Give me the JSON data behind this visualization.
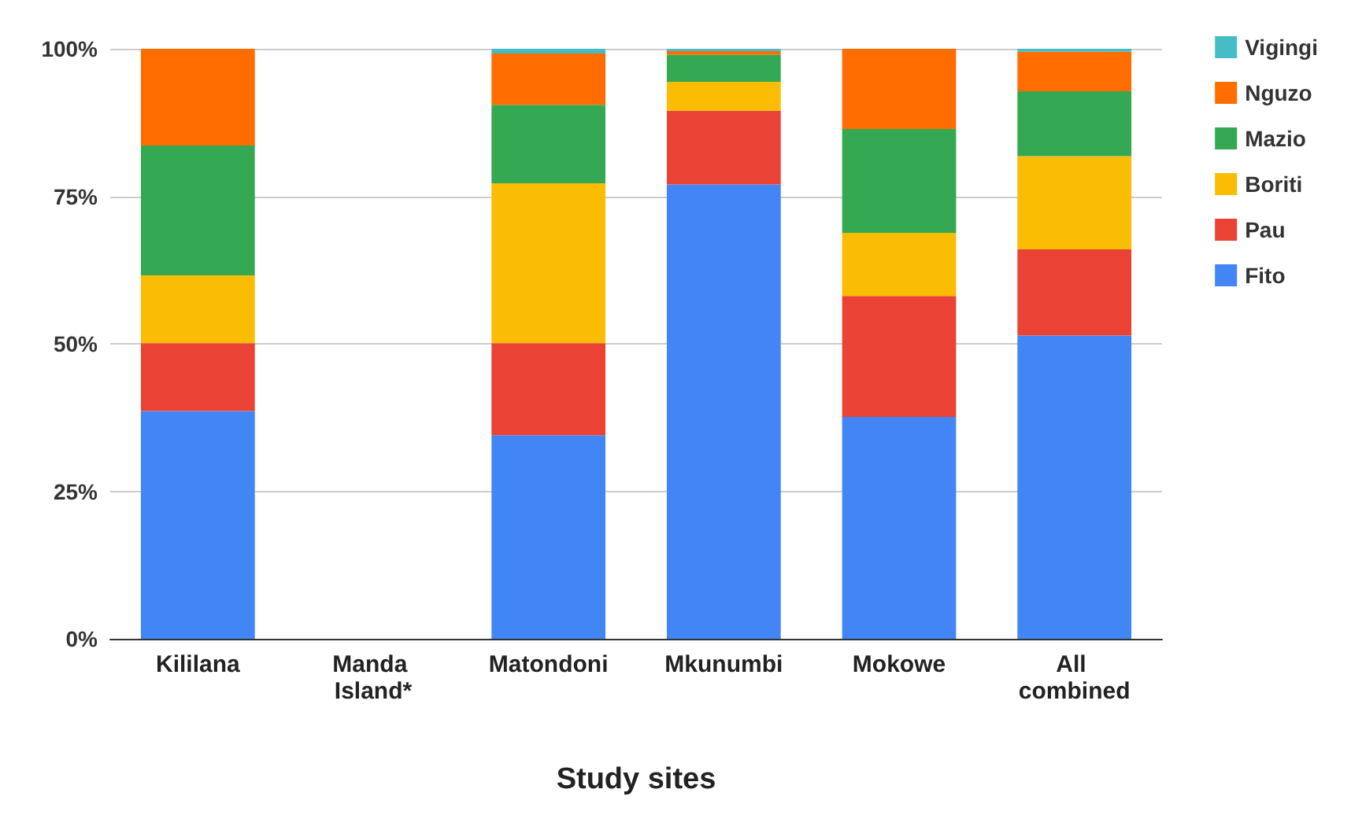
{
  "chart_data": {
    "type": "bar",
    "stacked": true,
    "xlabel": "Study sites",
    "categories": [
      "Kililana",
      "Manda Island*",
      "Matondoni",
      "Mkunumbi",
      "Mokowe",
      "All combined"
    ],
    "series": [
      {
        "name": "Fito",
        "color": "#4285f4",
        "values": [
          38.6,
          null,
          34.5,
          77,
          37.6,
          51.4
        ]
      },
      {
        "name": "Pau",
        "color": "#ea4335",
        "values": [
          11.5,
          null,
          15.6,
          12.5,
          20.5,
          14.6
        ]
      },
      {
        "name": "Boriti",
        "color": "#fbbc04",
        "values": [
          11.5,
          null,
          27.1,
          4.9,
          10.7,
          15.8
        ]
      },
      {
        "name": "Mazio",
        "color": "#34a853",
        "values": [
          22,
          null,
          13.3,
          4.6,
          17.6,
          11
        ]
      },
      {
        "name": "Nguzo",
        "color": "#ff6d01",
        "values": [
          16.4,
          null,
          8.7,
          0.6,
          13.6,
          6.7
        ]
      },
      {
        "name": "Vigingi",
        "color": "#46bdc6",
        "values": [
          0,
          null,
          0.8,
          0.4,
          0,
          0.5
        ]
      }
    ],
    "ylim": [
      0,
      100
    ],
    "yticks": [
      {
        "value": 0,
        "label": "0%"
      },
      {
        "value": 25,
        "label": "25%"
      },
      {
        "value": 50,
        "label": "50%"
      },
      {
        "value": 75,
        "label": "75%"
      },
      {
        "value": 100,
        "label": "100%"
      }
    ],
    "grid": "y",
    "legend": "top right"
  }
}
